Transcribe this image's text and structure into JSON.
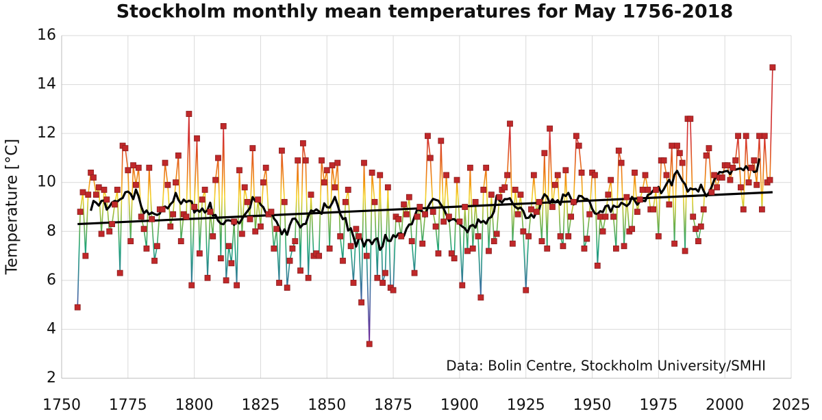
{
  "chart_data": {
    "type": "line",
    "title": "Stockholm monthly mean temperatures for May 1756-2018",
    "y_label": "Temperature [°C]",
    "annotation": "Data: Bolin Centre, Stockholm University/SMHI",
    "xlim": [
      1750,
      2025
    ],
    "xticks": [
      1750,
      1775,
      1800,
      1825,
      1850,
      1875,
      1900,
      1925,
      1950,
      1975,
      2000,
      2025
    ],
    "ylim": [
      2,
      16
    ],
    "yticks": [
      2,
      4,
      6,
      8,
      10,
      12,
      14,
      16
    ],
    "grid": true,
    "x": [
      1756,
      1757,
      1758,
      1759,
      1760,
      1761,
      1762,
      1763,
      1764,
      1765,
      1766,
      1767,
      1768,
      1769,
      1770,
      1771,
      1772,
      1773,
      1774,
      1775,
      1776,
      1777,
      1778,
      1779,
      1780,
      1781,
      1782,
      1783,
      1784,
      1785,
      1786,
      1787,
      1788,
      1789,
      1790,
      1791,
      1792,
      1793,
      1794,
      1795,
      1796,
      1797,
      1798,
      1799,
      1800,
      1801,
      1802,
      1803,
      1804,
      1805,
      1806,
      1807,
      1808,
      1809,
      1810,
      1811,
      1812,
      1813,
      1814,
      1815,
      1816,
      1817,
      1818,
      1819,
      1820,
      1821,
      1822,
      1823,
      1824,
      1825,
      1826,
      1827,
      1828,
      1829,
      1830,
      1831,
      1832,
      1833,
      1834,
      1835,
      1836,
      1837,
      1838,
      1839,
      1840,
      1841,
      1842,
      1843,
      1844,
      1845,
      1846,
      1847,
      1848,
      1849,
      1850,
      1851,
      1852,
      1853,
      1854,
      1855,
      1856,
      1857,
      1858,
      1859,
      1860,
      1861,
      1862,
      1863,
      1864,
      1865,
      1866,
      1867,
      1868,
      1869,
      1870,
      1871,
      1872,
      1873,
      1874,
      1875,
      1876,
      1877,
      1878,
      1879,
      1880,
      1881,
      1882,
      1883,
      1884,
      1885,
      1886,
      1887,
      1888,
      1889,
      1890,
      1891,
      1892,
      1893,
      1894,
      1895,
      1896,
      1897,
      1898,
      1899,
      1900,
      1901,
      1902,
      1903,
      1904,
      1905,
      1906,
      1907,
      1908,
      1909,
      1910,
      1911,
      1912,
      1913,
      1914,
      1915,
      1916,
      1917,
      1918,
      1919,
      1920,
      1921,
      1922,
      1923,
      1924,
      1925,
      1926,
      1927,
      1928,
      1929,
      1930,
      1931,
      1932,
      1933,
      1934,
      1935,
      1936,
      1937,
      1938,
      1939,
      1940,
      1941,
      1942,
      1943,
      1944,
      1945,
      1946,
      1947,
      1948,
      1949,
      1950,
      1951,
      1952,
      1953,
      1954,
      1955,
      1956,
      1957,
      1958,
      1959,
      1960,
      1961,
      1962,
      1963,
      1964,
      1965,
      1966,
      1967,
      1968,
      1969,
      1970,
      1971,
      1972,
      1973,
      1974,
      1975,
      1976,
      1977,
      1978,
      1979,
      1980,
      1981,
      1982,
      1983,
      1984,
      1985,
      1986,
      1987,
      1988,
      1989,
      1990,
      1991,
      1992,
      1993,
      1994,
      1995,
      1996,
      1997,
      1998,
      1999,
      2000,
      2001,
      2002,
      2003,
      2004,
      2005,
      2006,
      2007,
      2008,
      2009,
      2010,
      2011,
      2012,
      2013,
      2014,
      2015,
      2016,
      2017,
      2018
    ],
    "series": [
      {
        "color": "#c0282a",
        "values": [
          4.9,
          8.8,
          9.6,
          7.0,
          9.5,
          10.4,
          10.2,
          9.5,
          9.8,
          7.9,
          9.7,
          9.3,
          8.0,
          8.3,
          9.1,
          9.7,
          6.3,
          11.5,
          11.4,
          10.5,
          7.6,
          10.7,
          9.9,
          10.6,
          8.6,
          8.1,
          7.3,
          10.6,
          8.5,
          6.8,
          7.4,
          8.9,
          8.9,
          10.8,
          9.9,
          8.2,
          8.7,
          10.0,
          11.1,
          7.6,
          8.7,
          8.6,
          12.8,
          5.8,
          9.0,
          11.8,
          7.1,
          9.3,
          9.7,
          6.1,
          8.8,
          7.8,
          10.1,
          11.0,
          6.9,
          12.3,
          6.0,
          7.4,
          6.7,
          8.4,
          5.8,
          10.5,
          7.9,
          9.8,
          9.2,
          8.5,
          11.4,
          8.0,
          9.3,
          8.2,
          10.0,
          10.6,
          8.7,
          8.8,
          7.3,
          8.1,
          5.9,
          11.3,
          9.2,
          5.7,
          6.8,
          7.3,
          7.6,
          10.9,
          6.4,
          11.6,
          10.9,
          6.1,
          9.5,
          7.0,
          7.1,
          7.0,
          10.9,
          10.0,
          10.5,
          7.3,
          10.7,
          9.8,
          10.8,
          7.8,
          6.8,
          9.2,
          9.7,
          7.4,
          5.9,
          8.1,
          7.8,
          5.1,
          10.8,
          7.0,
          3.4,
          10.4,
          9.2,
          6.1,
          10.3,
          5.9,
          6.3,
          9.8,
          5.7,
          5.6,
          8.6,
          8.5,
          7.8,
          9.1,
          8.7,
          9.4,
          7.6,
          6.3,
          8.6,
          9.0,
          7.5,
          8.7,
          11.9,
          11.0,
          8.8,
          8.2,
          7.1,
          11.7,
          8.4,
          10.3,
          8.6,
          7.1,
          6.9,
          10.1,
          8.4,
          5.8,
          9.0,
          7.2,
          10.6,
          7.3,
          9.2,
          7.8,
          5.3,
          9.7,
          10.6,
          7.2,
          9.5,
          7.6,
          7.9,
          9.4,
          9.7,
          9.8,
          10.3,
          12.4,
          7.5,
          9.7,
          8.7,
          9.5,
          8.0,
          5.6,
          7.8,
          8.9,
          10.3,
          8.8,
          9.2,
          7.6,
          11.2,
          7.3,
          12.2,
          9.0,
          9.9,
          10.3,
          7.8,
          7.4,
          10.5,
          7.8,
          8.6,
          9.2,
          11.9,
          11.5,
          10.4,
          7.3,
          7.7,
          8.7,
          10.4,
          10.3,
          6.6,
          8.6,
          8.0,
          8.6,
          9.5,
          10.1,
          8.6,
          7.3,
          11.3,
          10.8,
          7.4,
          9.4,
          8.0,
          8.1,
          10.4,
          8.8,
          9.3,
          9.7,
          10.3,
          9.7,
          8.9,
          8.9,
          9.7,
          7.8,
          10.9,
          10.9,
          10.3,
          9.1,
          11.5,
          7.5,
          11.5,
          11.2,
          10.8,
          7.2,
          12.6,
          12.6,
          8.6,
          8.1,
          7.6,
          8.2,
          8.9,
          11.1,
          11.4,
          9.6,
          10.3,
          9.8,
          10.2,
          10.2,
          10.7,
          10.7,
          10.1,
          10.6,
          10.9,
          11.9,
          9.8,
          8.9,
          11.9,
          10.0,
          10.6,
          10.9,
          9.9,
          11.9,
          8.9,
          11.9,
          10.0,
          10.1,
          14.7
        ]
      }
    ],
    "trend": {
      "x": [
        1756,
        2018
      ],
      "values": [
        8.3,
        9.6
      ],
      "color": "#000000"
    }
  }
}
